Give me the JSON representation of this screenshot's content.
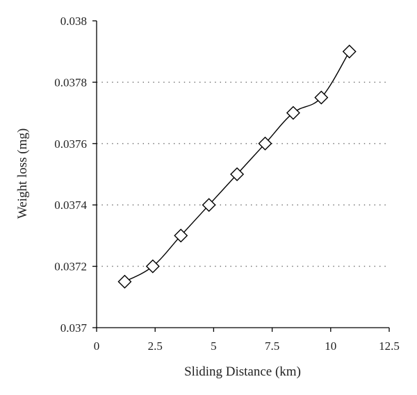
{
  "chart_data": {
    "type": "line",
    "title": "",
    "xlabel": "Sliding Distance (km)",
    "ylabel": "Weight loss (mg)",
    "xlim": [
      0,
      12.5
    ],
    "ylim": [
      0.037,
      0.038
    ],
    "x_ticks": [
      0,
      2.5,
      5,
      7.5,
      10,
      12.5
    ],
    "x_tick_labels": [
      "0",
      "2.5",
      "5",
      "7.5",
      "10",
      "12.5"
    ],
    "y_ticks": [
      0.037,
      0.0372,
      0.0374,
      0.0376,
      0.0378,
      0.038
    ],
    "y_tick_labels": [
      "0.037",
      "0.0372",
      "0.0374",
      "0.0376",
      "0.0378",
      "0.038"
    ],
    "grid": "horizontal dotted",
    "marker": "diamond",
    "colors": {
      "line": "#000000",
      "grid": "#666666",
      "axis": "#000000"
    },
    "series": [
      {
        "x": [
          1.2,
          2.4,
          3.6,
          4.8,
          6.0,
          7.2,
          8.4,
          9.6,
          10.8
        ],
        "values": [
          0.03715,
          0.0372,
          0.0373,
          0.0374,
          0.0375,
          0.0376,
          0.0377,
          0.03775,
          0.0379
        ]
      }
    ]
  }
}
